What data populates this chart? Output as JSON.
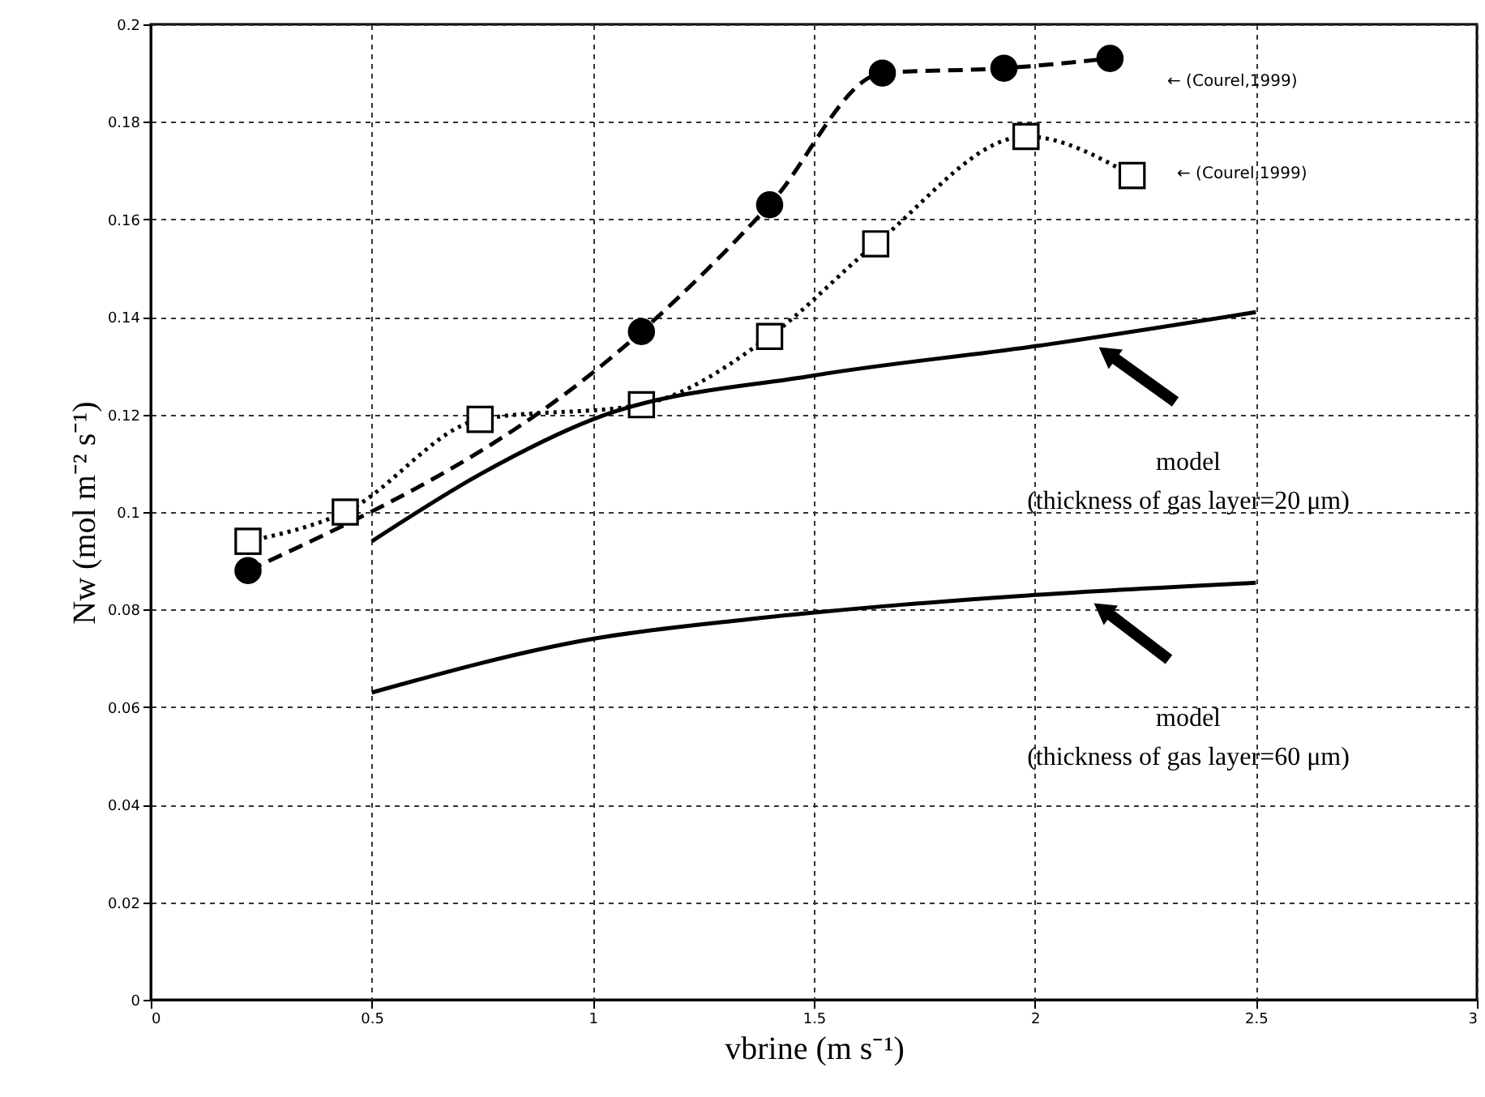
{
  "chart_data": {
    "type": "line",
    "xlabel": "vbrine (m s⁻¹)",
    "ylabel": "Nw (mol m⁻² s⁻¹)",
    "xlim": [
      0,
      3
    ],
    "xticks": [
      0,
      0.5,
      1,
      1.5,
      2,
      2.5,
      3
    ],
    "ylim": [
      0,
      0.2
    ],
    "yticks": [
      0,
      0.02,
      0.04,
      0.06,
      0.08,
      0.1,
      0.12,
      0.14,
      0.16,
      0.18,
      0.2
    ],
    "grid": true,
    "series": [
      {
        "color": "#000000",
        "marker": "circle",
        "line_style": "dashed",
        "x": [
          0.22,
          1.11,
          1.4,
          1.655,
          1.93,
          2.17
        ],
        "values": [
          0.088,
          0.137,
          0.163,
          0.19,
          0.191,
          0.193
        ]
      },
      {
        "color": "#000000",
        "marker": "square",
        "line_style": "dotted",
        "x": [
          0.22,
          0.44,
          0.745,
          1.11,
          1.4,
          1.64,
          1.98,
          2.22
        ],
        "values": [
          0.094,
          0.1,
          0.119,
          0.122,
          0.136,
          0.155,
          0.177,
          0.169
        ]
      },
      {
        "color": "#000000",
        "marker": "none",
        "line_style": "solid",
        "x": [
          0.5,
          0.75,
          1,
          1.5,
          2,
          2.5
        ],
        "values": [
          0.094,
          0.108,
          0.119,
          0.128,
          0.134,
          0.141
        ]
      },
      {
        "color": "#000000",
        "marker": "none",
        "line_style": "solid",
        "x": [
          0.5,
          1,
          1.35,
          1.7,
          2,
          2.5
        ],
        "values": [
          0.063,
          0.074,
          0.078,
          0.081,
          0.083,
          0.0855
        ]
      }
    ],
    "annotations": [
      "← (Courel,1999)",
      "← (Courel,1999)",
      "model\n(thickness of gas layer=20 μm)",
      "model\n(thickness of gas layer=60 μm)"
    ]
  }
}
